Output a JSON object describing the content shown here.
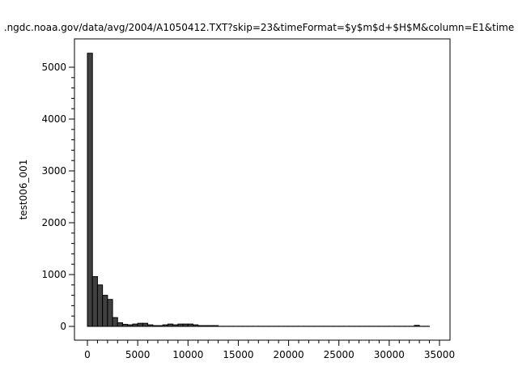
{
  "chart_data": {
    "type": "bar",
    "title": ".ngdc.noaa.gov/data/avg/2004/A1050412.TXT?skip=23&timeFormat=$y$m$d+$H$M&column=E1&time",
    "xlabel": "",
    "ylabel": "test006_001",
    "bin_width": 500,
    "bin_start": 0,
    "values": [
      5270,
      960,
      800,
      600,
      520,
      170,
      70,
      40,
      30,
      45,
      60,
      60,
      30,
      15,
      15,
      30,
      45,
      30,
      45,
      45,
      45,
      30,
      15,
      15,
      15,
      15,
      3,
      3,
      3,
      3,
      3,
      3,
      3,
      3,
      3,
      3,
      3,
      3,
      3,
      3,
      3,
      3,
      3,
      3,
      3,
      3,
      3,
      3,
      3,
      3,
      3,
      3,
      3,
      3,
      3,
      3,
      3,
      3,
      3,
      3,
      3,
      3,
      3,
      3,
      3,
      20,
      3,
      3
    ],
    "xlim": [
      -1500,
      36000
    ],
    "ylim": [
      -280,
      5520
    ],
    "xticks": [
      0,
      5000,
      10000,
      15000,
      20000,
      25000,
      30000,
      35000
    ],
    "xtick_labels": [
      "0",
      "5000",
      "10000",
      "15000",
      "20000",
      "25000",
      "30000",
      "35000"
    ],
    "yticks": [
      0,
      1000,
      2000,
      3000,
      4000,
      5000
    ],
    "ytick_labels": [
      "0",
      "1000",
      "2000",
      "3000",
      "4000",
      "5000"
    ],
    "grid": false,
    "bar_color": "#404040",
    "edge_color": "#000000"
  }
}
